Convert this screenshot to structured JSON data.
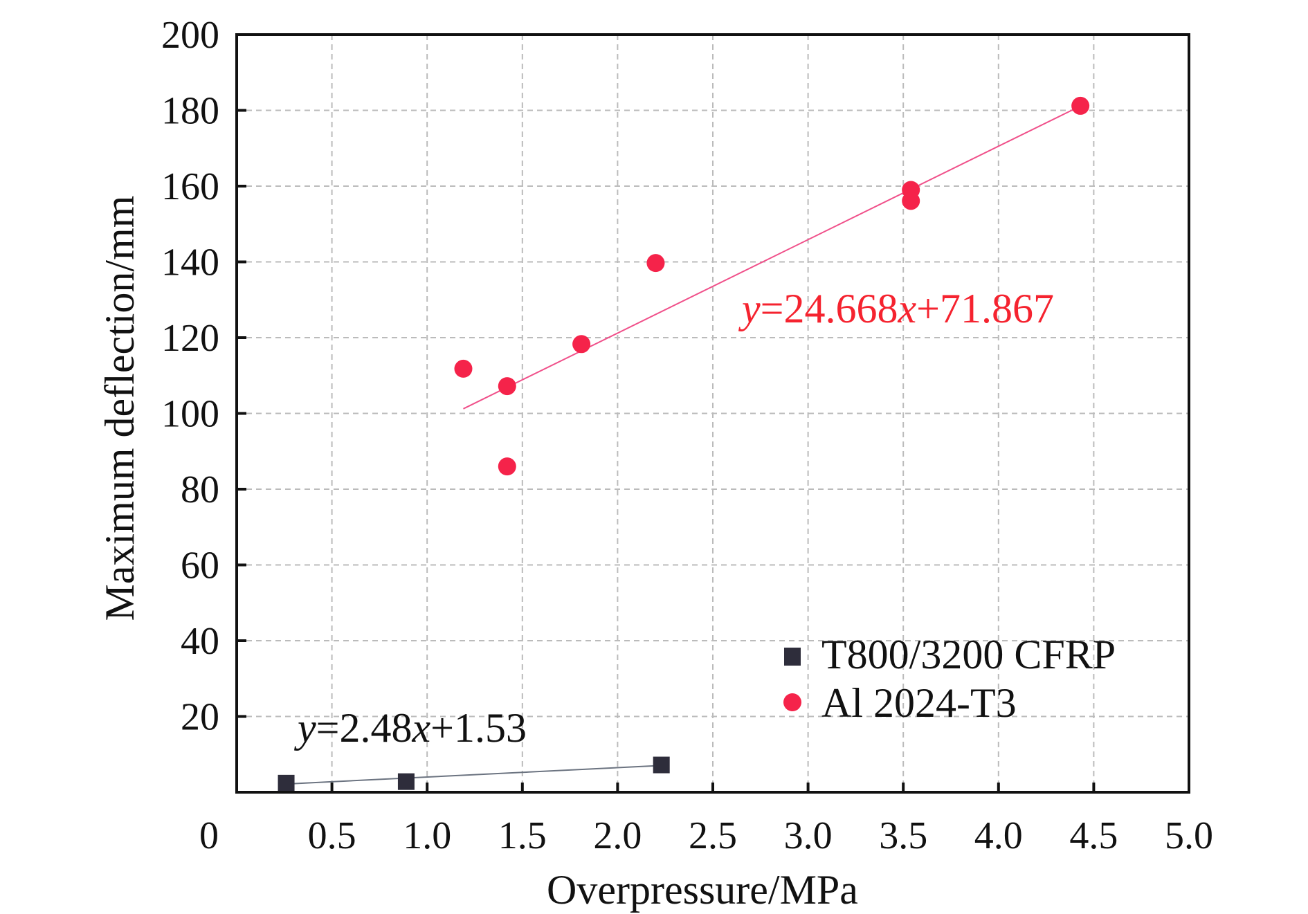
{
  "chart_data": {
    "type": "scatter",
    "title": "",
    "xlabel": "Overpressure/MPa",
    "ylabel": "Maximum deflection/mm",
    "xlim": [
      0,
      5.0
    ],
    "ylim": [
      0,
      200
    ],
    "x_ticks": [
      "0",
      "0.5",
      "1.0",
      "1.5",
      "2.0",
      "2.5",
      "3.0",
      "3.5",
      "4.0",
      "4.5",
      "5.0"
    ],
    "x_tick_values": [
      0,
      0.5,
      1.0,
      1.5,
      2.0,
      2.5,
      3.0,
      3.5,
      4.0,
      4.5,
      5.0
    ],
    "y_ticks": [
      "20",
      "40",
      "60",
      "80",
      "100",
      "120",
      "140",
      "160",
      "180",
      "200"
    ],
    "y_tick_values": [
      20,
      40,
      60,
      80,
      100,
      120,
      140,
      160,
      180,
      200
    ],
    "grid": true,
    "legend_position": "bottom-right",
    "series": [
      {
        "name": "T800/3200 CFRP",
        "marker": "square",
        "color": "#2e2d3b",
        "points": [
          [
            0.26,
            2.4
          ],
          [
            0.89,
            2.8
          ],
          [
            2.23,
            7.2
          ]
        ],
        "fit": {
          "slope": 2.48,
          "intercept": 1.53,
          "x_range": [
            0.26,
            2.23
          ],
          "color": "#6b7380"
        },
        "equation": {
          "y": "y",
          "rest": "=2.48",
          "x": "x",
          "tail": "+1.53"
        }
      },
      {
        "name": "Al 2024-T3",
        "marker": "circle",
        "color": "#f5234a",
        "points": [
          [
            1.19,
            111.8
          ],
          [
            1.42,
            107.2
          ],
          [
            1.42,
            86.0
          ],
          [
            1.81,
            118.3
          ],
          [
            2.2,
            139.7
          ],
          [
            3.54,
            159.0
          ],
          [
            3.54,
            156.1
          ],
          [
            4.43,
            181.2
          ]
        ],
        "fit": {
          "slope": 24.668,
          "intercept": 71.867,
          "x_range": [
            1.19,
            4.43
          ],
          "color": "#f0508a"
        },
        "equation": {
          "y": "y",
          "rest": "=24.668",
          "x": "x",
          "tail": "+71.867"
        }
      }
    ]
  }
}
